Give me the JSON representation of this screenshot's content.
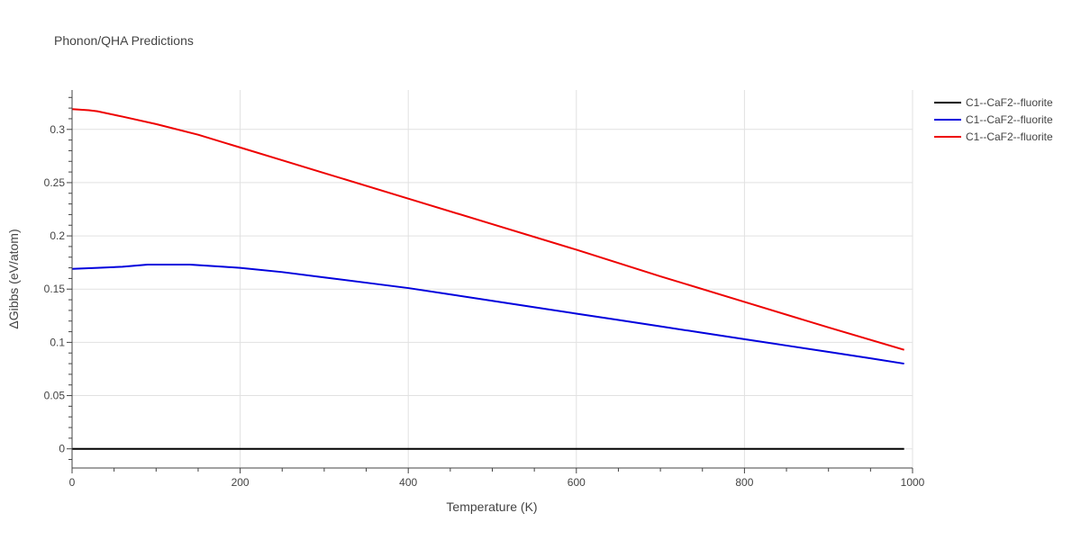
{
  "chart_data": {
    "type": "line",
    "title": "Phonon/QHA Predictions",
    "xlabel": "Temperature (K)",
    "ylabel": "ΔGibbs (eV/atom)",
    "xlim": [
      0,
      1000
    ],
    "ylim": [
      -0.018,
      0.337
    ],
    "x_ticks": [
      0,
      200,
      400,
      600,
      800,
      1000
    ],
    "y_ticks": [
      0,
      0.05,
      0.1,
      0.15,
      0.2,
      0.25,
      0.3
    ],
    "y_tick_labels": [
      "0",
      "0.05",
      "0.1",
      "0.15",
      "0.2",
      "0.25",
      "0.3"
    ],
    "grid": true,
    "legend_position": "top-right",
    "series": [
      {
        "name": "C1--CaF2--fluorite",
        "color": "#000000",
        "x": [
          0,
          990
        ],
        "y": [
          0,
          0
        ]
      },
      {
        "name": "C1--CaF2--fluorite",
        "color": "#0000dd",
        "x": [
          0,
          30,
          60,
          90,
          100,
          140,
          180,
          200,
          250,
          300,
          360,
          400,
          450,
          500,
          550,
          600,
          650,
          700,
          750,
          800,
          850,
          900,
          950,
          990
        ],
        "y": [
          0.169,
          0.17,
          0.171,
          0.173,
          0.173,
          0.173,
          0.171,
          0.17,
          0.166,
          0.161,
          0.155,
          0.151,
          0.145,
          0.139,
          0.133,
          0.127,
          0.121,
          0.115,
          0.109,
          0.103,
          0.097,
          0.091,
          0.085,
          0.08
        ]
      },
      {
        "name": "C1--CaF2--fluorite",
        "color": "#ee0000",
        "x": [
          0,
          20,
          30,
          60,
          100,
          150,
          200,
          250,
          300,
          400,
          500,
          600,
          700,
          800,
          900,
          990
        ],
        "y": [
          0.319,
          0.318,
          0.317,
          0.312,
          0.305,
          0.295,
          0.283,
          0.271,
          0.259,
          0.235,
          0.211,
          0.187,
          0.162,
          0.138,
          0.114,
          0.093
        ]
      }
    ]
  }
}
